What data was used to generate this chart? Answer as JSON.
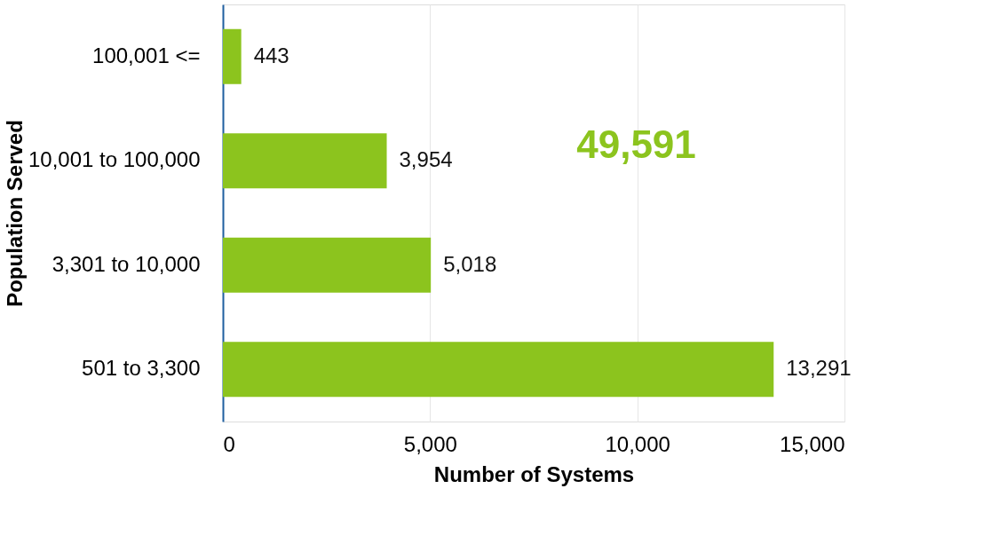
{
  "chart_data": {
    "type": "bar",
    "orientation": "horizontal",
    "categories": [
      "100,001 <=",
      "10,001 to 100,000",
      "3,301 to 10,000",
      "501 to 3,300"
    ],
    "values": [
      443,
      3954,
      5018,
      13291
    ],
    "value_labels": [
      "443",
      "3,954",
      "5,018",
      "13,291"
    ],
    "color": "#8cc41e",
    "xlabel": "Number of Systems",
    "ylabel": "Population Served",
    "xlim": [
      0,
      15000
    ],
    "xticks": [
      0,
      {
        "value": 5000,
        "label": "5,000"
      },
      {
        "value": 10000,
        "label": "10,000"
      },
      {
        "value": 15000,
        "label": "15,000"
      }
    ],
    "grid": "x",
    "annotations": [
      "49,591"
    ]
  }
}
